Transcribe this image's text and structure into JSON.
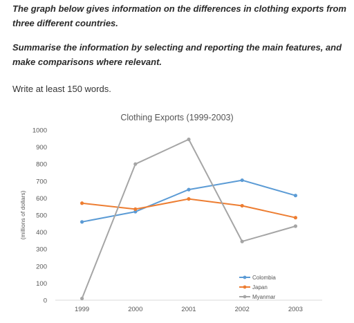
{
  "prompt": {
    "paragraph_1": "The graph below gives information on the differences in clothing exports from three different countries.",
    "paragraph_2": "Summarise the information by selecting and reporting the main features, and make comparisons where relevant.",
    "instruction": "Write at least 150 words."
  },
  "chart_data": {
    "type": "line",
    "title": "Clothing Exports (1999-2003)",
    "xlabel": "",
    "ylabel": "(millions of dollars)",
    "categories": [
      "1999",
      "2000",
      "2001",
      "2002",
      "2003"
    ],
    "ylim": [
      0,
      1000
    ],
    "yticks": [
      0,
      100,
      200,
      300,
      400,
      500,
      600,
      700,
      800,
      900,
      1000
    ],
    "grid": false,
    "legend_position": "bottom-right",
    "series": [
      {
        "name": "Colombia",
        "color": "#5b9bd5",
        "values": [
          460,
          520,
          650,
          705,
          615
        ]
      },
      {
        "name": "Japan",
        "color": "#ed7d31",
        "values": [
          570,
          535,
          595,
          555,
          485
        ]
      },
      {
        "name": "Myanmar",
        "color": "#a5a5a5",
        "values": [
          10,
          800,
          945,
          345,
          435
        ]
      }
    ]
  }
}
